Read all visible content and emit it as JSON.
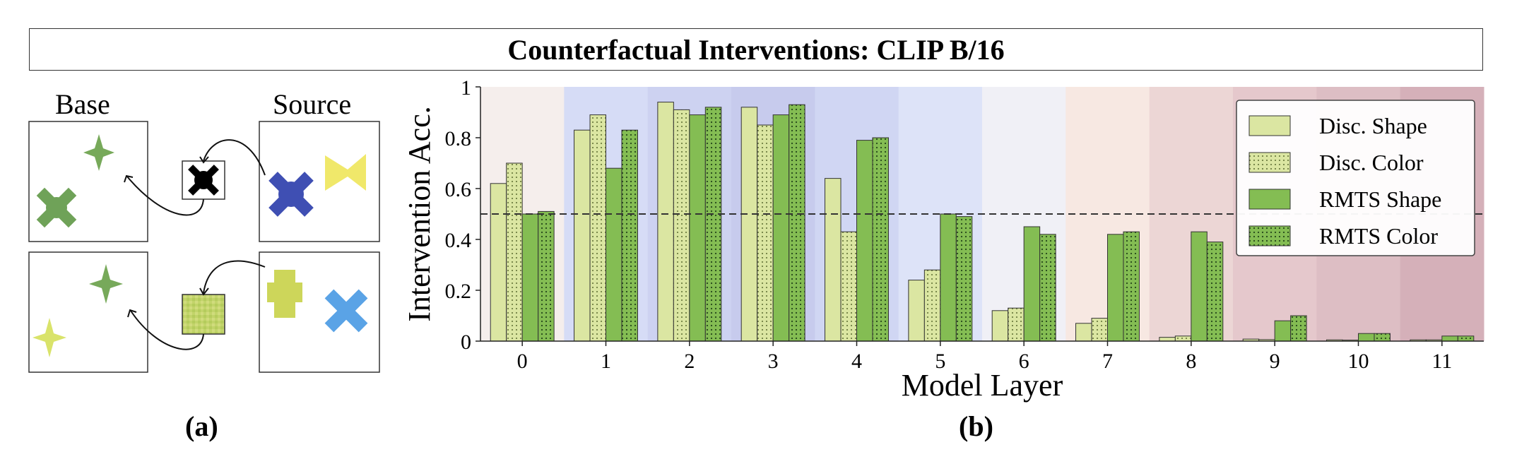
{
  "figure_title": "Counterfactual Interventions: CLIP B/16",
  "panel_a": {
    "base_label": "Base",
    "source_label": "Source",
    "sub_label": "(a)"
  },
  "panel_b": {
    "sub_label": "(b)"
  },
  "colors": {
    "layer_bands": [
      "#f5eeec",
      "#d6dcf6",
      "#cdd2f1",
      "#c7cbed",
      "#d0d6f3",
      "#dde3f8",
      "#f0f0f6",
      "#f7e8e2",
      "#ecd6d5",
      "#e5c8cc",
      "#ddbec4",
      "#d5b0b9"
    ],
    "disc": "#dbe6a2",
    "rmts": "#84bd53",
    "bar_edge": "#333333",
    "threshold": "#333333"
  },
  "chart_data": {
    "type": "bar",
    "title": "",
    "xlabel": "Model Layer",
    "ylabel": "Intervention Acc.",
    "categories": [
      "0",
      "1",
      "2",
      "3",
      "4",
      "5",
      "6",
      "7",
      "8",
      "9",
      "10",
      "11"
    ],
    "ylim": [
      0,
      1
    ],
    "yticks": [
      0,
      0.2,
      0.4,
      0.6,
      0.8,
      1
    ],
    "ytick_labels": [
      "0",
      "0.2",
      "0.4",
      "0.6",
      "0.8",
      "1"
    ],
    "threshold": 0.5,
    "legend_position": "top-right",
    "series": [
      {
        "name": "Disc. Shape",
        "style": "plain",
        "color": "#dbe6a2",
        "values": [
          0.62,
          0.83,
          0.94,
          0.92,
          0.64,
          0.24,
          0.12,
          0.07,
          0.015,
          0.008,
          0.005,
          0.005
        ]
      },
      {
        "name": "Disc. Color",
        "style": "dotted",
        "color": "#dbe6a2",
        "values": [
          0.7,
          0.89,
          0.91,
          0.85,
          0.43,
          0.28,
          0.13,
          0.09,
          0.02,
          0.006,
          0.004,
          0.005
        ]
      },
      {
        "name": "RMTS Shape",
        "style": "plain",
        "color": "#84bd53",
        "values": [
          0.5,
          0.68,
          0.89,
          0.89,
          0.79,
          0.5,
          0.45,
          0.42,
          0.43,
          0.08,
          0.03,
          0.02
        ]
      },
      {
        "name": "RMTS Color",
        "style": "dotted",
        "color": "#84bd53",
        "values": [
          0.51,
          0.83,
          0.92,
          0.93,
          0.8,
          0.49,
          0.42,
          0.43,
          0.39,
          0.1,
          0.03,
          0.02
        ]
      }
    ]
  }
}
